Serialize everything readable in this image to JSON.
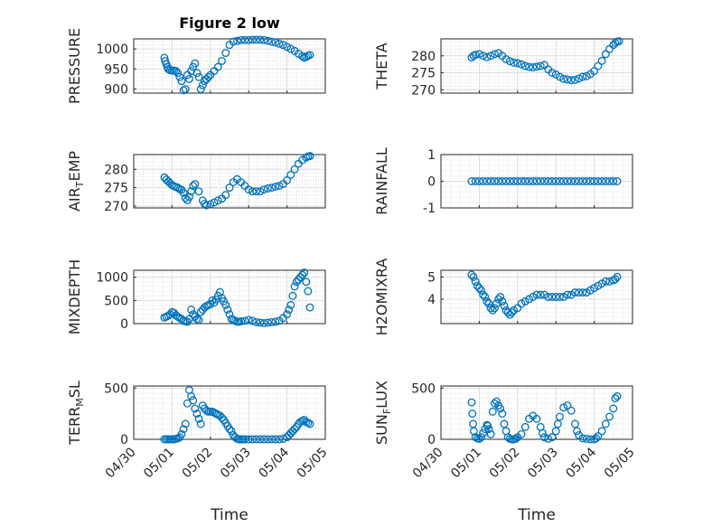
{
  "colors": {
    "marker": "#0072bd",
    "axis": "#262626",
    "grid": "#dcdcdc"
  },
  "chart_data": [
    {
      "name": "PRESSURE",
      "type": "scatter",
      "title": "Figure 2 low",
      "ylabel": "PRESSURE",
      "ylim": [
        890,
        1025
      ],
      "yticks": [
        900,
        950,
        1000
      ],
      "yminor": 10,
      "x": [
        0.8,
        0.82,
        0.85,
        0.88,
        0.9,
        0.95,
        1.0,
        1.05,
        1.1,
        1.15,
        1.2,
        1.25,
        1.3,
        1.35,
        1.4,
        1.45,
        1.5,
        1.55,
        1.6,
        1.65,
        1.7,
        1.75,
        1.8,
        1.85,
        1.9,
        1.95,
        2.0,
        2.1,
        2.2,
        2.3,
        2.4,
        2.5,
        2.6,
        2.7,
        2.8,
        2.9,
        3.0,
        3.1,
        3.2,
        3.3,
        3.4,
        3.5,
        3.6,
        3.7,
        3.8,
        3.9,
        4.0,
        4.1,
        4.2,
        4.3,
        4.4,
        4.45,
        4.5,
        4.55,
        4.6
      ],
      "y": [
        978,
        970,
        962,
        955,
        950,
        947,
        946,
        946,
        945,
        940,
        930,
        920,
        897,
        900,
        935,
        925,
        945,
        955,
        964,
        940,
        930,
        900,
        910,
        920,
        925,
        930,
        935,
        945,
        955,
        970,
        990,
        1010,
        1018,
        1020,
        1022,
        1022,
        1022,
        1023,
        1023,
        1023,
        1022,
        1020,
        1018,
        1016,
        1013,
        1010,
        1005,
        1000,
        995,
        988,
        982,
        978,
        980,
        983,
        985
      ]
    },
    {
      "name": "THETA",
      "type": "scatter",
      "ylabel": "THETA",
      "ylim": [
        269,
        285
      ],
      "yticks": [
        270,
        275,
        280
      ],
      "yminor": 1,
      "x": [
        0.8,
        0.85,
        0.9,
        1.0,
        1.1,
        1.2,
        1.3,
        1.4,
        1.5,
        1.6,
        1.7,
        1.8,
        1.9,
        2.0,
        2.1,
        2.2,
        2.3,
        2.4,
        2.5,
        2.6,
        2.7,
        2.8,
        2.9,
        3.0,
        3.1,
        3.2,
        3.3,
        3.4,
        3.5,
        3.6,
        3.7,
        3.8,
        3.9,
        4.0,
        4.1,
        4.2,
        4.3,
        4.4,
        4.5,
        4.55,
        4.6,
        4.65
      ],
      "y": [
        279.5,
        280,
        280.3,
        280.5,
        280,
        279.6,
        280,
        280.5,
        280.8,
        280,
        279,
        278.4,
        278,
        277.8,
        277.5,
        277,
        276.7,
        276.6,
        276.8,
        277,
        277.3,
        276,
        275,
        274.5,
        273.8,
        273.2,
        273,
        272.8,
        272.9,
        273.3,
        273.8,
        274,
        274.6,
        275.5,
        277,
        278.5,
        280.5,
        282,
        283.2,
        283.8,
        284.2,
        284.3
      ]
    },
    {
      "name": "AIR_TEMP",
      "type": "scatter",
      "ylabel": "AIR_TEMP",
      "ylim": [
        269.5,
        284
      ],
      "yticks": [
        270,
        275,
        280
      ],
      "yminor": 1,
      "x": [
        0.8,
        0.85,
        0.9,
        0.95,
        1.0,
        1.05,
        1.1,
        1.15,
        1.2,
        1.25,
        1.3,
        1.35,
        1.4,
        1.45,
        1.5,
        1.55,
        1.6,
        1.7,
        1.8,
        1.85,
        1.9,
        2.0,
        2.1,
        2.2,
        2.3,
        2.4,
        2.5,
        2.6,
        2.7,
        2.8,
        2.9,
        3.0,
        3.1,
        3.2,
        3.3,
        3.4,
        3.5,
        3.6,
        3.7,
        3.8,
        3.9,
        4.0,
        4.1,
        4.2,
        4.3,
        4.4,
        4.5,
        4.55,
        4.6
      ],
      "y": [
        277.8,
        277.2,
        276.7,
        276.2,
        275.7,
        275.4,
        275.2,
        275,
        274.6,
        274.4,
        273.6,
        272.2,
        271.6,
        272.5,
        274,
        275.5,
        276,
        274,
        271.5,
        270.6,
        270.2,
        270.5,
        271,
        271.5,
        272,
        273,
        275,
        276.5,
        277.3,
        276.5,
        275.5,
        274.5,
        274,
        274,
        274,
        274.5,
        274.8,
        275,
        275.3,
        275.5,
        276,
        277,
        278.5,
        280,
        281.5,
        282.5,
        283.2,
        283.5,
        283.6
      ]
    },
    {
      "name": "RAINFALL",
      "type": "scatter",
      "ylabel": "RAINFALL",
      "ylim": [
        -1,
        1
      ],
      "yticks": [
        -1,
        0,
        1
      ],
      "yminor": 0.2,
      "x": [
        0.8,
        0.9,
        1.0,
        1.1,
        1.2,
        1.3,
        1.4,
        1.5,
        1.6,
        1.7,
        1.8,
        1.9,
        2.0,
        2.1,
        2.2,
        2.3,
        2.4,
        2.5,
        2.6,
        2.7,
        2.8,
        2.9,
        3.0,
        3.1,
        3.2,
        3.3,
        3.4,
        3.5,
        3.6,
        3.7,
        3.8,
        3.9,
        4.0,
        4.1,
        4.2,
        4.3,
        4.4,
        4.5,
        4.6
      ],
      "y": [
        0,
        0,
        0,
        0,
        0,
        0,
        0,
        0,
        0,
        0,
        0,
        0,
        0,
        0,
        0,
        0,
        0,
        0,
        0,
        0,
        0,
        0,
        0,
        0,
        0,
        0,
        0,
        0,
        0,
        0,
        0,
        0,
        0,
        0,
        0,
        0,
        0,
        0,
        0
      ]
    },
    {
      "name": "MIXDEPTH",
      "type": "scatter",
      "ylabel": "MIXDEPTH",
      "ylim": [
        0,
        1150
      ],
      "yticks": [
        0,
        500,
        1000
      ],
      "yminor": 100,
      "x": [
        0.8,
        0.85,
        0.9,
        0.95,
        1.0,
        1.05,
        1.1,
        1.15,
        1.2,
        1.25,
        1.3,
        1.35,
        1.4,
        1.45,
        1.5,
        1.55,
        1.6,
        1.65,
        1.7,
        1.75,
        1.8,
        1.85,
        1.9,
        1.95,
        2.0,
        2.05,
        2.1,
        2.15,
        2.2,
        2.25,
        2.3,
        2.35,
        2.4,
        2.45,
        2.5,
        2.55,
        2.6,
        2.65,
        2.7,
        2.75,
        2.8,
        2.9,
        3.0,
        3.1,
        3.2,
        3.3,
        3.4,
        3.5,
        3.6,
        3.7,
        3.8,
        3.9,
        4.0,
        4.05,
        4.1,
        4.15,
        4.2,
        4.25,
        4.3,
        4.35,
        4.4,
        4.45,
        4.5,
        4.55,
        4.6
      ],
      "y": [
        130,
        150,
        170,
        200,
        250,
        230,
        180,
        150,
        120,
        100,
        60,
        50,
        40,
        100,
        300,
        200,
        150,
        100,
        80,
        250,
        300,
        350,
        380,
        400,
        420,
        500,
        450,
        520,
        600,
        680,
        550,
        480,
        400,
        300,
        200,
        100,
        80,
        60,
        40,
        40,
        50,
        60,
        80,
        60,
        30,
        20,
        10,
        20,
        30,
        40,
        60,
        120,
        200,
        300,
        400,
        600,
        800,
        900,
        950,
        1000,
        1050,
        1100,
        900,
        700,
        350
      ]
    },
    {
      "name": "H2OMIXRA",
      "type": "scatter",
      "ylabel": "H2OMIXRA",
      "ylim": [
        2.9,
        5.3
      ],
      "yticks": [
        4,
        5
      ],
      "yminor": 0.2,
      "x": [
        0.8,
        0.85,
        0.9,
        0.95,
        1.0,
        1.05,
        1.1,
        1.15,
        1.2,
        1.25,
        1.3,
        1.35,
        1.4,
        1.45,
        1.5,
        1.55,
        1.6,
        1.65,
        1.7,
        1.75,
        1.8,
        1.85,
        1.9,
        2.0,
        2.1,
        2.2,
        2.3,
        2.4,
        2.5,
        2.6,
        2.7,
        2.8,
        2.9,
        3.0,
        3.1,
        3.2,
        3.3,
        3.4,
        3.5,
        3.6,
        3.7,
        3.8,
        3.9,
        4.0,
        4.1,
        4.2,
        4.3,
        4.4,
        4.5,
        4.55,
        4.6
      ],
      "y": [
        5.1,
        5.0,
        4.8,
        4.6,
        4.5,
        4.4,
        4.2,
        4.1,
        3.9,
        3.8,
        3.6,
        3.5,
        3.6,
        3.8,
        4.0,
        4.1,
        3.9,
        3.7,
        3.5,
        3.4,
        3.3,
        3.4,
        3.5,
        3.6,
        3.8,
        3.9,
        4.0,
        4.1,
        4.2,
        4.2,
        4.2,
        4.1,
        4.1,
        4.1,
        4.1,
        4.1,
        4.2,
        4.2,
        4.3,
        4.3,
        4.3,
        4.3,
        4.4,
        4.5,
        4.6,
        4.7,
        4.8,
        4.8,
        4.85,
        4.9,
        5.0
      ]
    },
    {
      "name": "TERR_MSL",
      "type": "scatter",
      "ylabel": "TERR_MSL",
      "ylim": [
        0,
        520
      ],
      "yticks": [
        0,
        500
      ],
      "yminor": 50,
      "x": [
        0.8,
        0.85,
        0.9,
        0.95,
        1.0,
        1.05,
        1.1,
        1.15,
        1.2,
        1.25,
        1.3,
        1.35,
        1.4,
        1.45,
        1.5,
        1.55,
        1.6,
        1.65,
        1.7,
        1.75,
        1.8,
        1.85,
        1.9,
        1.95,
        2.0,
        2.05,
        2.1,
        2.15,
        2.2,
        2.25,
        2.3,
        2.35,
        2.4,
        2.45,
        2.5,
        2.55,
        2.6,
        2.65,
        2.7,
        2.75,
        2.8,
        2.85,
        2.9,
        3.0,
        3.1,
        3.2,
        3.3,
        3.4,
        3.5,
        3.6,
        3.7,
        3.8,
        3.9,
        4.0,
        4.05,
        4.1,
        4.15,
        4.2,
        4.25,
        4.3,
        4.35,
        4.4,
        4.45,
        4.5,
        4.55,
        4.6
      ],
      "y": [
        0,
        0,
        0,
        0,
        0,
        0,
        5,
        10,
        20,
        50,
        100,
        150,
        350,
        480,
        420,
        380,
        300,
        250,
        200,
        150,
        330,
        300,
        280,
        270,
        270,
        270,
        260,
        250,
        240,
        230,
        210,
        190,
        160,
        130,
        100,
        80,
        40,
        20,
        5,
        0,
        0,
        0,
        0,
        0,
        0,
        0,
        0,
        0,
        0,
        0,
        0,
        0,
        5,
        20,
        40,
        60,
        80,
        100,
        120,
        150,
        170,
        180,
        190,
        170,
        160,
        150
      ]
    },
    {
      "name": "SUN_FLUX",
      "type": "scatter",
      "ylabel": "SUN_FLUX",
      "ylim": [
        0,
        520
      ],
      "yticks": [
        0,
        500
      ],
      "yminor": 50,
      "x": [
        0.8,
        0.82,
        0.84,
        0.86,
        0.9,
        0.95,
        1.0,
        1.05,
        1.1,
        1.15,
        1.2,
        1.22,
        1.25,
        1.3,
        1.35,
        1.4,
        1.45,
        1.5,
        1.55,
        1.6,
        1.65,
        1.7,
        1.75,
        1.8,
        1.85,
        1.9,
        1.95,
        2.0,
        2.1,
        2.2,
        2.3,
        2.4,
        2.5,
        2.6,
        2.65,
        2.7,
        2.8,
        2.9,
        3.0,
        3.05,
        3.1,
        3.2,
        3.3,
        3.4,
        3.5,
        3.55,
        3.6,
        3.7,
        3.8,
        3.9,
        4.0,
        4.05,
        4.1,
        4.2,
        4.3,
        4.4,
        4.5,
        4.55,
        4.6
      ],
      "y": [
        360,
        250,
        150,
        80,
        20,
        10,
        5,
        20,
        60,
        100,
        140,
        130,
        100,
        50,
        270,
        350,
        370,
        330,
        300,
        250,
        150,
        80,
        20,
        5,
        0,
        0,
        5,
        20,
        50,
        120,
        200,
        230,
        200,
        120,
        60,
        20,
        5,
        20,
        80,
        150,
        220,
        310,
        330,
        280,
        150,
        80,
        40,
        10,
        5,
        0,
        0,
        10,
        30,
        80,
        150,
        220,
        300,
        400,
        420
      ]
    }
  ],
  "xaxis": {
    "ticks": [
      0,
      1,
      2,
      3,
      4,
      5
    ],
    "ticklabels": [
      "04/30",
      "05/01",
      "05/02",
      "05/03",
      "05/04",
      "05/05"
    ],
    "label": "Time",
    "minor_step": 0.25
  }
}
